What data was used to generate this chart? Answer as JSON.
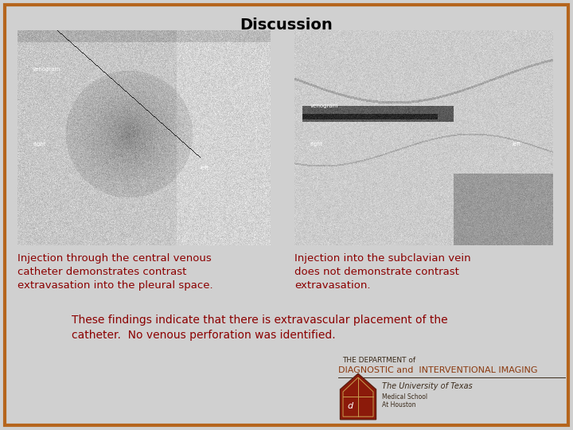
{
  "title": "Discussion",
  "title_fontsize": 14,
  "title_color": "#000000",
  "background_color": "#d0d0d0",
  "border_color": "#b5651d",
  "border_linewidth": 3,
  "caption1": "Injection through the central venous\ncatheter demonstrates contrast\nextravasation into the pleural space.",
  "caption2": "Injection into the subclavian vein\ndoes not demonstrate contrast\nextravasation.",
  "caption_color": "#8B0000",
  "caption_fontsize": 9.5,
  "findings_text": "These findings indicate that there is extravascular placement of the\ncatheter.  No venous perforation was identified.",
  "findings_color": "#8B0000",
  "findings_fontsize": 10,
  "dept_line1": "THE DEPARTMENT of",
  "dept_line2": "DIAGNOSTIC and  INTERVENTIONAL IMAGING",
  "dept_line3": "The University of Texas",
  "dept_line4": "Medical School\nAt Houston",
  "dept_color_dark": "#3a2a1a",
  "dept_color_rust": "#8B3a10",
  "logo_color_red": "#8B1a0a",
  "logo_color_gold": "#c8a050"
}
